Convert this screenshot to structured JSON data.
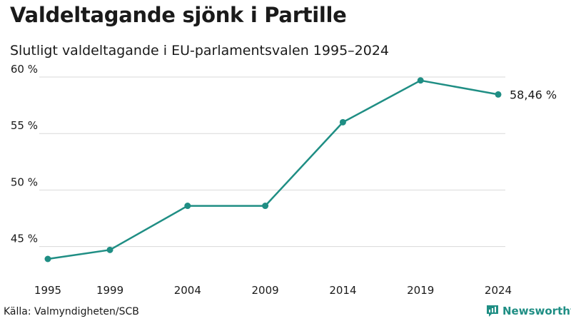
{
  "title": "Valdeltagande sjönk i Partille",
  "subtitle": "Slutligt valdeltagande i EU-parlamentsvalen 1995–2024",
  "source": "Källa: Valmyndigheten/SCB",
  "brand": {
    "name": "Newsworthy",
    "icon": "newsworthy-logo-icon"
  },
  "colors": {
    "line": "#1f8e84",
    "grid": "#d9d9d9",
    "text": "#1a1a1a"
  },
  "chart_data": {
    "type": "line",
    "title": "Valdeltagande sjönk i Partille",
    "subtitle": "Slutligt valdeltagande i EU-parlamentsvalen 1995–2024",
    "xlabel": "",
    "ylabel": "",
    "x": [
      "1995",
      "1999",
      "2004",
      "2009",
      "2014",
      "2019",
      "2024"
    ],
    "series": [
      {
        "name": "Valdeltagande",
        "values": [
          43.9,
          44.7,
          48.6,
          48.6,
          56.0,
          59.7,
          58.46
        ]
      }
    ],
    "yticks": [
      45,
      50,
      55,
      60
    ],
    "ytick_labels": [
      "45 %",
      "50 %",
      "55 %",
      "60 %"
    ],
    "ylim": [
      43.9,
      60
    ],
    "grid": true,
    "end_label": "58,46 %"
  }
}
